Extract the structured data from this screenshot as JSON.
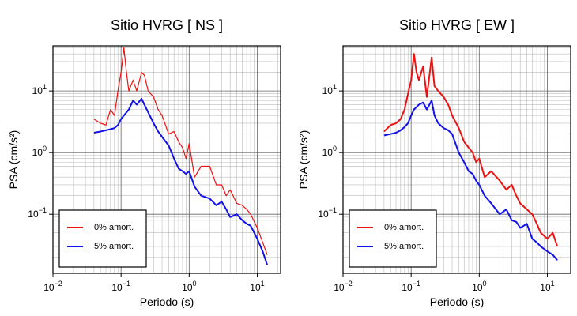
{
  "chart_data": [
    {
      "type": "line",
      "title": "Sitio HVRG [ NS ]",
      "xlabel": "Periodo (s)",
      "ylabel": "PSA (cm/s²)",
      "log_x": true,
      "log_y": true,
      "grid": true,
      "legend": "lower left",
      "xlim": [
        0.01,
        22
      ],
      "ylim": [
        0.011,
        54
      ],
      "xticks": [
        {
          "value": 0.01,
          "label": "10^-2"
        },
        {
          "value": 0.1,
          "label": "10^-1"
        },
        {
          "value": 1,
          "label": "10^0"
        },
        {
          "value": 10,
          "label": "10^1"
        }
      ],
      "yticks": [
        {
          "value": 0.1,
          "label": "10^-1"
        },
        {
          "value": 1,
          "label": "10^0"
        },
        {
          "value": 10,
          "label": "10^1"
        }
      ],
      "x": [
        0.04,
        0.05,
        0.06,
        0.07,
        0.08,
        0.09,
        0.1,
        0.11,
        0.12,
        0.13,
        0.15,
        0.17,
        0.2,
        0.22,
        0.25,
        0.3,
        0.35,
        0.4,
        0.5,
        0.6,
        0.7,
        0.8,
        0.9,
        1,
        1.2,
        1.5,
        2,
        2.5,
        3,
        3.5,
        4,
        5,
        6,
        7,
        8,
        10,
        12,
        14
      ],
      "series": [
        {
          "name": "0% amort.",
          "color": "#ee1111",
          "linewidth": 1.2,
          "values": [
            3.5,
            3,
            2.8,
            5,
            4,
            10,
            20,
            50,
            20,
            10,
            15,
            10,
            20,
            18,
            10,
            8,
            5,
            4,
            2,
            2.2,
            1.5,
            1.2,
            0.8,
            1.4,
            0.4,
            0.6,
            0.6,
            0.3,
            0.3,
            0.2,
            0.25,
            0.15,
            0.14,
            0.12,
            0.1,
            0.06,
            0.035,
            0.022
          ]
        },
        {
          "name": "5% amort.",
          "color": "#1111ee",
          "linewidth": 2,
          "values": [
            2.1,
            2.2,
            2.3,
            2.4,
            2.5,
            2.8,
            3.5,
            4,
            4.5,
            5,
            7,
            6,
            7.5,
            6,
            4.5,
            3,
            2.2,
            1.8,
            1.3,
            0.8,
            0.55,
            0.5,
            0.45,
            0.5,
            0.28,
            0.2,
            0.18,
            0.14,
            0.16,
            0.12,
            0.09,
            0.1,
            0.08,
            0.07,
            0.065,
            0.04,
            0.025,
            0.015
          ]
        }
      ]
    },
    {
      "type": "line",
      "title": "Sitio HVRG [ EW ]",
      "xlabel": "Periodo (s)",
      "ylabel": "PSA (cm/s²)",
      "log_x": true,
      "log_y": true,
      "grid": true,
      "legend": "lower left",
      "xlim": [
        0.01,
        22
      ],
      "ylim": [
        0.011,
        54
      ],
      "xticks": [
        {
          "value": 0.01,
          "label": "10^-2"
        },
        {
          "value": 0.1,
          "label": "10^-1"
        },
        {
          "value": 1,
          "label": "10^0"
        },
        {
          "value": 10,
          "label": "10^1"
        }
      ],
      "yticks": [
        {
          "value": 0.1,
          "label": "10^-1"
        },
        {
          "value": 1,
          "label": "10^0"
        },
        {
          "value": 10,
          "label": "10^1"
        }
      ],
      "x": [
        0.04,
        0.05,
        0.06,
        0.07,
        0.08,
        0.09,
        0.1,
        0.11,
        0.12,
        0.13,
        0.15,
        0.17,
        0.2,
        0.22,
        0.25,
        0.3,
        0.35,
        0.4,
        0.5,
        0.6,
        0.7,
        0.8,
        0.9,
        1,
        1.2,
        1.5,
        2,
        2.5,
        3,
        3.5,
        4,
        5,
        6,
        7,
        8,
        10,
        12,
        14
      ],
      "series": [
        {
          "name": "0% amort.",
          "color": "#ee1111",
          "linewidth": 2,
          "values": [
            2.2,
            2.8,
            3,
            3.5,
            5,
            9,
            15,
            40,
            20,
            15,
            25,
            8,
            35,
            12,
            10,
            8,
            6,
            4,
            2.5,
            1.5,
            1.2,
            1,
            0.7,
            0.8,
            0.4,
            0.5,
            0.35,
            0.25,
            0.3,
            0.2,
            0.15,
            0.12,
            0.1,
            0.07,
            0.05,
            0.04,
            0.05,
            0.03
          ]
        },
        {
          "name": "5% amort.",
          "color": "#1111ee",
          "linewidth": 2,
          "values": [
            1.9,
            2,
            2.1,
            2.3,
            2.6,
            3,
            4,
            5,
            5.5,
            6,
            6.5,
            5,
            7,
            4,
            3,
            2.5,
            2.3,
            2,
            1,
            0.7,
            0.5,
            0.45,
            0.35,
            0.3,
            0.2,
            0.15,
            0.1,
            0.12,
            0.08,
            0.075,
            0.06,
            0.07,
            0.04,
            0.035,
            0.03,
            0.025,
            0.022,
            0.018
          ]
        }
      ]
    }
  ]
}
